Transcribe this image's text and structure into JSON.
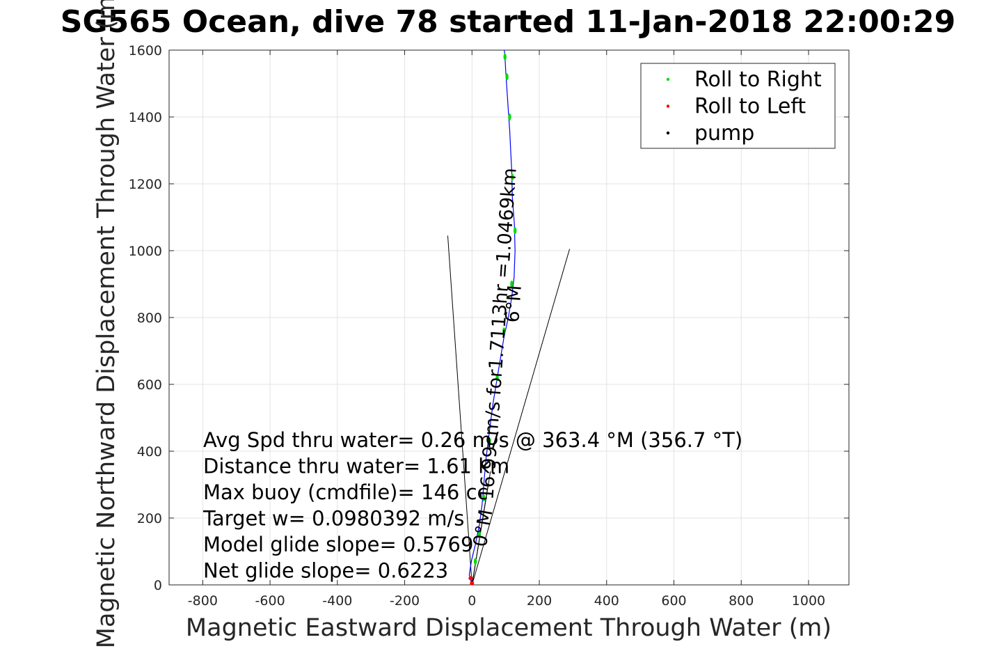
{
  "chart_data": {
    "type": "line",
    "title": "SG565 Ocean, dive 78 started 11-Jan-2018 22:00:29",
    "xlabel": "Magnetic Eastward Displacement Through Water (m)",
    "ylabel": "Magnetic Northward Displacement Through Water (m)",
    "xlim": [
      -900,
      1120
    ],
    "ylim": [
      0,
      1600
    ],
    "x_ticks": [
      -800,
      -600,
      -400,
      -200,
      0,
      200,
      400,
      600,
      800,
      1000
    ],
    "y_ticks": [
      0,
      200,
      400,
      600,
      800,
      1000,
      1200,
      1400,
      1600
    ],
    "grid": true,
    "legend_position": "top-right",
    "legend": [
      {
        "label": "Roll to Right",
        "color": "#00dd00"
      },
      {
        "label": "Roll to Left",
        "color": "#ff0000"
      },
      {
        "label": "pump",
        "color": "#000000"
      }
    ],
    "series": [
      {
        "name": "",
        "color": "#0000ff",
        "x": [
          0,
          -8,
          -2,
          10,
          22,
          30,
          35,
          42,
          52,
          62,
          75,
          85,
          95,
          108,
          118,
          125,
          128,
          126,
          120,
          118,
          115,
          112,
          108,
          104,
          100,
          98,
          96
        ],
        "y": [
          0,
          30,
          70,
          120,
          180,
          240,
          300,
          380,
          460,
          540,
          620,
          680,
          740,
          800,
          860,
          920,
          1000,
          1080,
          1160,
          1240,
          1300,
          1360,
          1420,
          1480,
          1540,
          1580,
          1600
        ]
      }
    ],
    "roll_right_x": [
      10,
      22,
      35,
      52,
      75,
      95,
      118,
      128,
      120,
      112,
      104,
      98
    ],
    "roll_right_y": [
      70,
      150,
      260,
      430,
      620,
      760,
      900,
      1060,
      1220,
      1400,
      1520,
      1580
    ],
    "roll_left_x": [
      -4,
      0
    ],
    "roll_left_y": [
      20,
      5
    ],
    "lines": [
      {
        "x": [
          0,
          -72
        ],
        "y": [
          0,
          1045
        ]
      },
      {
        "x": [
          0,
          290
        ],
        "y": [
          0,
          1005
        ]
      },
      {
        "x": [
          0,
          55
        ],
        "y": [
          0,
          340
        ]
      },
      {
        "x": [
          0,
          48
        ],
        "y": [
          0,
          300
        ]
      }
    ],
    "annotations": [
      "Avg Spd thru water=  0.26 m/s @ 363.4 °M (356.7 °T)",
      "Distance thru water=  1.61 km",
      "Max buoy (cmdfile)= 146 cc",
      "Target w= 0.0980392 m/s",
      "Model glide slope= 0.5769",
      "Net glide slope= 0.6223"
    ],
    "rotated_labels": [
      "16.99cm/s for1.7113hr =1.0469km",
      "6°M",
      "0°M"
    ]
  }
}
